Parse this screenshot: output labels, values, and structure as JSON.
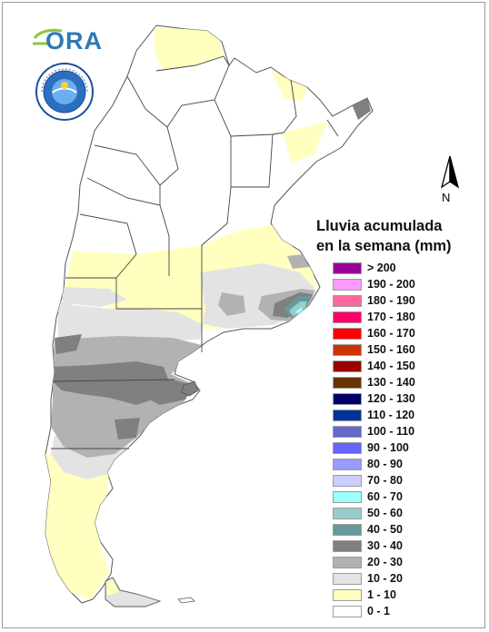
{
  "logo": {
    "text": "ORA",
    "icon": "ora-logo-icon"
  },
  "seal": {
    "icon": "smn-seal-icon",
    "caption": "ARGENTINA"
  },
  "north_arrow": {
    "label": "N",
    "icon": "north-arrow-icon"
  },
  "legend": {
    "title_line1": "Lluvia acumulada",
    "title_line2": "en la semana (mm)",
    "classes": [
      {
        "label": "> 200",
        "color": "#9b009b"
      },
      {
        "label": "190 - 200",
        "color": "#ff99ff"
      },
      {
        "label": "180 - 190",
        "color": "#ff6699"
      },
      {
        "label": "170 - 180",
        "color": "#ff0066"
      },
      {
        "label": "160 - 170",
        "color": "#ff0000"
      },
      {
        "label": "150 - 160",
        "color": "#cc3300"
      },
      {
        "label": "140 - 150",
        "color": "#990000"
      },
      {
        "label": "130 - 140",
        "color": "#663300"
      },
      {
        "label": "120 - 130",
        "color": "#000066"
      },
      {
        "label": "110 - 120",
        "color": "#003399"
      },
      {
        "label": "100 - 110",
        "color": "#6666cc"
      },
      {
        "label": "90 - 100",
        "color": "#6666ff"
      },
      {
        "label": "80 - 90",
        "color": "#9999ff"
      },
      {
        "label": "70 - 80",
        "color": "#ccccff"
      },
      {
        "label": "60 - 70",
        "color": "#99ffff"
      },
      {
        "label": "50 - 60",
        "color": "#99cccc"
      },
      {
        "label": "40 - 50",
        "color": "#669999"
      },
      {
        "label": "30 - 40",
        "color": "#808080"
      },
      {
        "label": "20 - 30",
        "color": "#b2b2b2"
      },
      {
        "label": "10 - 20",
        "color": "#e3e3e3"
      },
      {
        "label": "1 - 10",
        "color": "#ffffc0"
      },
      {
        "label": "0 - 1",
        "color": "#ffffff"
      }
    ]
  }
}
